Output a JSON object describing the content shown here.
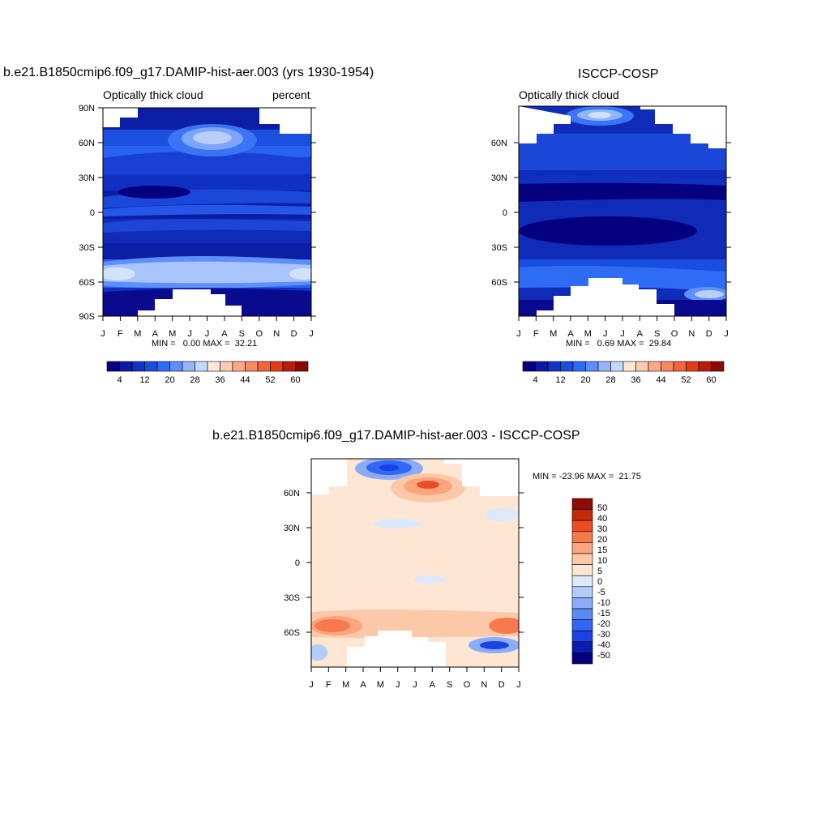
{
  "charts": [
    {
      "title": "b.e21.B1850cmip6.f09_g17.DAMIP-hist-aer.003 (yrs 1930-1954)",
      "subtitle_left": "Optically thick cloud",
      "subtitle_right": "percent",
      "minmax": "MIN =   0.00 MAX =  32.21",
      "yticks": [
        "90N",
        "60N",
        "30N",
        "0",
        "30S",
        "60S",
        "90S"
      ],
      "xticks": [
        "J",
        "F",
        "M",
        "A",
        "M",
        "J",
        "J",
        "A",
        "S",
        "O",
        "N",
        "D",
        "J"
      ],
      "colorbar_labels": [
        "4",
        "12",
        "20",
        "28",
        "36",
        "44",
        "52",
        "60"
      ]
    },
    {
      "title": "ISCCP-COSP",
      "subtitle_left": "Optically thick cloud",
      "minmax": "MIN =   0.69 MAX =  29.84",
      "yticks": [
        "60N",
        "30N",
        "0",
        "30S",
        "60S"
      ],
      "xticks": [
        "J",
        "F",
        "M",
        "A",
        "M",
        "J",
        "J",
        "A",
        "S",
        "O",
        "N",
        "D",
        "J"
      ],
      "colorbar_labels": [
        "4",
        "12",
        "20",
        "28",
        "36",
        "44",
        "52",
        "60"
      ]
    },
    {
      "title": "b.e21.B1850cmip6.f09_g17.DAMIP-hist-aer.003 - ISCCP-COSP",
      "minmax": "MIN = -23.96 MAX =  21.75",
      "yticks": [
        "60N",
        "30N",
        "0",
        "30S",
        "60S"
      ],
      "xticks": [
        "J",
        "F",
        "M",
        "A",
        "M",
        "J",
        "J",
        "A",
        "S",
        "O",
        "N",
        "D",
        "J"
      ],
      "colorbar_labels": [
        "50",
        "40",
        "30",
        "20",
        "15",
        "10",
        "5",
        "0",
        "-5",
        "-10",
        "-15",
        "-20",
        "-30",
        "-40",
        "-50"
      ]
    }
  ],
  "chart_data": [
    {
      "type": "heatmap",
      "title": "b.e21.B1850cmip6.f09_g17.DAMIP-hist-aer.003 (yrs 1930-1954)",
      "variable": "Optically thick cloud",
      "units": "percent",
      "x_categories": [
        "J",
        "F",
        "M",
        "A",
        "M",
        "J",
        "J",
        "A",
        "S",
        "O",
        "N",
        "D",
        "J"
      ],
      "ylim": [
        -90,
        90
      ],
      "min": 0.0,
      "max": 32.21,
      "levels": [
        0,
        4,
        8,
        12,
        16,
        20,
        24,
        28,
        32,
        36,
        40,
        44,
        48,
        52,
        56,
        60,
        64
      ]
    },
    {
      "type": "heatmap",
      "title": "ISCCP-COSP",
      "variable": "Optically thick cloud",
      "x_categories": [
        "J",
        "F",
        "M",
        "A",
        "M",
        "J",
        "J",
        "A",
        "S",
        "O",
        "N",
        "D",
        "J"
      ],
      "ylim": [
        -90,
        90
      ],
      "min": 0.69,
      "max": 29.84,
      "levels": [
        0,
        4,
        8,
        12,
        16,
        20,
        24,
        28,
        32,
        36,
        40,
        44,
        48,
        52,
        56,
        60,
        64
      ]
    },
    {
      "type": "heatmap",
      "title": "b.e21.B1850cmip6.f09_g17.DAMIP-hist-aer.003 - ISCCP-COSP",
      "x_categories": [
        "J",
        "F",
        "M",
        "A",
        "M",
        "J",
        "J",
        "A",
        "S",
        "O",
        "N",
        "D",
        "J"
      ],
      "ylim": [
        -90,
        90
      ],
      "min": -23.96,
      "max": 21.75,
      "levels": [
        -50,
        -40,
        -30,
        -20,
        -15,
        -10,
        -5,
        0,
        5,
        10,
        15,
        20,
        30,
        40,
        50
      ]
    }
  ],
  "colors": {
    "seq_palette": [
      "#05007f",
      "#0b1a9f",
      "#0f33c4",
      "#1a4ee0",
      "#2f6cf5",
      "#5f8ffa",
      "#93b5fa",
      "#c4d9fb",
      "#fde8d8",
      "#fccbb0",
      "#fbaa88",
      "#f78a63",
      "#f1643d",
      "#e53b1b",
      "#b71d0d",
      "#870a05"
    ],
    "div_palette": [
      "#06007c",
      "#0d1cb0",
      "#1a42e5",
      "#3266f3",
      "#5a89f8",
      "#8aacf9",
      "#b4ccfa",
      "#dce9fb",
      "#fde7d4",
      "#fcc9a8",
      "#fba47e",
      "#f67a4e",
      "#ec4c22",
      "#c32a0b",
      "#8e0a03"
    ]
  }
}
